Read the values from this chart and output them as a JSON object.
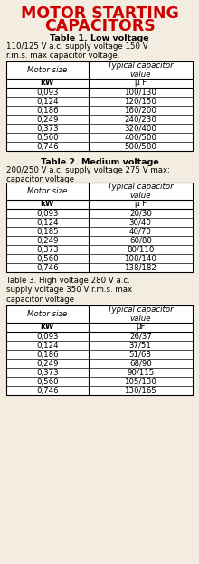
{
  "title_line1": "MOTOR STARTING",
  "title_line2": "CAPACITORS",
  "title_color": "#cc0000",
  "title_fontsize": 12.5,
  "bg_color": "#f2ede0",
  "table1_title": "Table 1. Low voltage",
  "table1_subtitle": "110/125 V a.c. supply voltage 150 V\nr.m.s. max capacitor voltage.",
  "table2_title": "Table 2. Medium voltage",
  "table2_subtitle": "200/250 V a.c. supply voltage 275 V max:\ncapacitor voltage",
  "table3_title": "Table 3. High voltage 280 V a.c.\nsupply voltage 350 V r.m.s. max\ncapacitor voltage",
  "col_headers": [
    "Motor size",
    "Typical capacitor\nvalue"
  ],
  "col_sub_headers_1": [
    "kW",
    "μ F"
  ],
  "col_sub_headers_2": [
    "kW",
    "μ F"
  ],
  "col_sub_headers_3": [
    "kW",
    "μF"
  ],
  "table1_data": [
    [
      "0,093",
      "100/130"
    ],
    [
      "0,124",
      "120/150"
    ],
    [
      "0,186",
      "160/200"
    ],
    [
      "0,249",
      "240/230"
    ],
    [
      "0,373",
      "320/400"
    ],
    [
      "0,560",
      "400/500"
    ],
    [
      "0,746",
      "500/580"
    ]
  ],
  "table2_data": [
    [
      "0,093",
      "20/30"
    ],
    [
      "0,124",
      "30/40"
    ],
    [
      "0,185",
      "40/70"
    ],
    [
      "0,249",
      "60/80"
    ],
    [
      "0,373",
      "80/110"
    ],
    [
      "0,560",
      "108/140"
    ],
    [
      "0,746",
      "138/182"
    ]
  ],
  "table3_data": [
    [
      "0,093",
      "26/37"
    ],
    [
      "0,124",
      "37/51"
    ],
    [
      "0,186",
      "51/68"
    ],
    [
      "0,249",
      "68/90"
    ],
    [
      "0,373",
      "90/115"
    ],
    [
      "0,560",
      "105/130"
    ],
    [
      "0,746",
      "130/165"
    ]
  ],
  "text_fontsize": 6.2,
  "header_fontsize": 6.2,
  "table_title_fontsize": 6.8,
  "subtitle_fontsize": 6.2
}
